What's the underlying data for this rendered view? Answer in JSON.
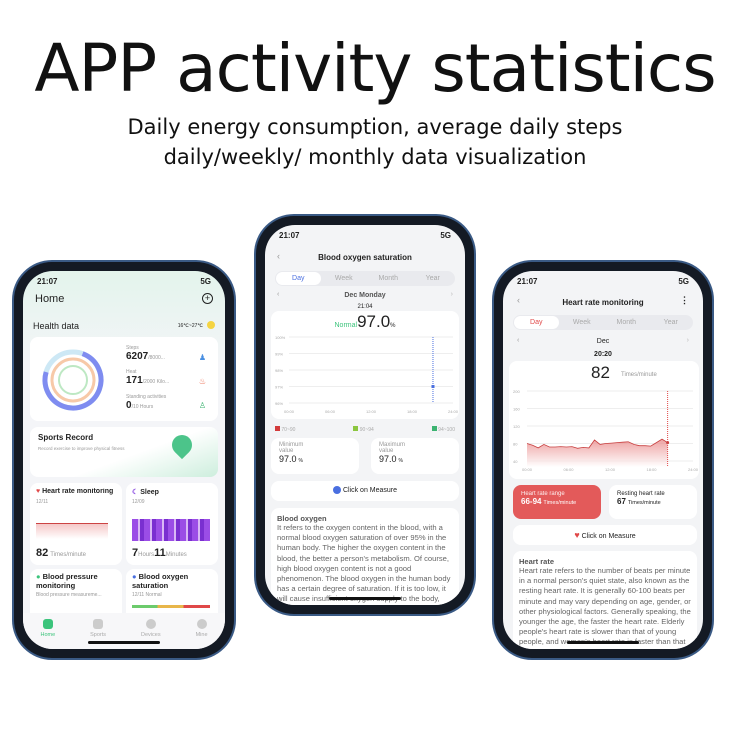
{
  "headline": "APP activity statistics",
  "subheadline": "Daily energy consumption, average daily steps daily/weekly/ monthly data visualization",
  "status_time": "21:07",
  "network": "5G",
  "home": {
    "title": "Home",
    "add_icon": "plus-circle-icon",
    "section": "Health data",
    "weather": "16℃~27℃",
    "steps": {
      "label": "Steps",
      "value": "6207",
      "goal": "/8000..."
    },
    "heat": {
      "label": "Heat",
      "value": "171",
      "goal": "/2000 Kilo..."
    },
    "standing": {
      "label": "Standing activities",
      "value": "0",
      "goal": "/10 Hours"
    },
    "sports": {
      "title": "Sports Record",
      "desc": "Record exercise to improve physical fitness"
    },
    "heart": {
      "title": "Heart rate monitoring",
      "date": "12/11",
      "value": "82",
      "unit": "Times/minute"
    },
    "sleep": {
      "title": "Sleep",
      "date": "12/09",
      "hours": "7",
      "hours_unit": "Hours",
      "minutes": "11",
      "minutes_unit": "Minutes"
    },
    "bp": {
      "title": "Blood pressure monitoring",
      "desc": "Blood pressure measureme..."
    },
    "oxygen": {
      "title": "Blood oxygen saturation",
      "desc": "12/11 Normal"
    },
    "nav": [
      "Home",
      "Sports",
      "Devices",
      "Mine"
    ]
  },
  "spo2": {
    "title": "Blood oxygen saturation",
    "tabs": [
      "Day",
      "Week",
      "Month",
      "Year"
    ],
    "active_tab": "Day",
    "date": "Dec Monday",
    "time": "21:04",
    "status": "Normal",
    "value": "97.0",
    "unit": "%",
    "y_ticks": [
      "100%",
      "99%",
      "98%",
      "97%",
      "96%"
    ],
    "x_ticks": [
      "00:00",
      "06:00",
      "12:00",
      "18:00",
      "24:00"
    ],
    "legend": [
      "70~90",
      "90~94",
      "94~100"
    ],
    "legend_colors": [
      "#d33b3b",
      "#8cc63f",
      "#3cb371"
    ],
    "min_label": "Minimum value",
    "min_value": "97.0",
    "max_label": "Maximum value",
    "max_value": "97.0",
    "measure": "Click on Measure",
    "info_title": "Blood oxygen",
    "info": "It refers to the oxygen content in the blood, with a normal blood oxygen saturation of over 95% in the human body. The higher the oxygen content in the blood, the better a person's metabolism. Of course, high blood oxygen content is not a good phenomenon. The blood oxygen in the human body has a certain degree of saturation. If it is too low, it will cause insufficient oxygen supply to the body, and if it is too high, it will lead to cell aging in the body."
  },
  "hr": {
    "title": "Heart rate monitoring",
    "tabs": [
      "Day",
      "Week",
      "Month",
      "Year"
    ],
    "active_tab": "Day",
    "date": "Dec",
    "time": "20:20",
    "value": "82",
    "unit": "Times/minute",
    "y_ticks": [
      "200",
      "160",
      "120",
      "80",
      "40"
    ],
    "x_ticks": [
      "00:00",
      "06:00",
      "12:00",
      "18:00",
      "24:00"
    ],
    "series": [
      80,
      76,
      70,
      78,
      72,
      72,
      73,
      72,
      73,
      69,
      71,
      70,
      88,
      78,
      80,
      81,
      82,
      83,
      84,
      78,
      75,
      75,
      74,
      82,
      90,
      82
    ],
    "range_label": "Heart rate range",
    "range_value": "66-94",
    "resting_label": "Resting heart rate",
    "resting_value": "67",
    "measure": "Click on Measure",
    "info_title": "Heart rate",
    "info": "Heart rate refers to the number of beats per minute in a normal person's quiet state, also known as the resting heart rate. It is generally 60-100 beats per minute and may vary depending on age, gender, or other physiological factors. Generally speaking, the younger the age, the faster the heart rate. Elderly people's heart rate is slower than that of young people, and women's heart rate is faster than that of men of the same age. These are normal physiological phenomena."
  },
  "colors": {
    "heart": "#e04848",
    "oxygen": "#4a6fe0",
    "accent_green": "#3cc47c"
  }
}
